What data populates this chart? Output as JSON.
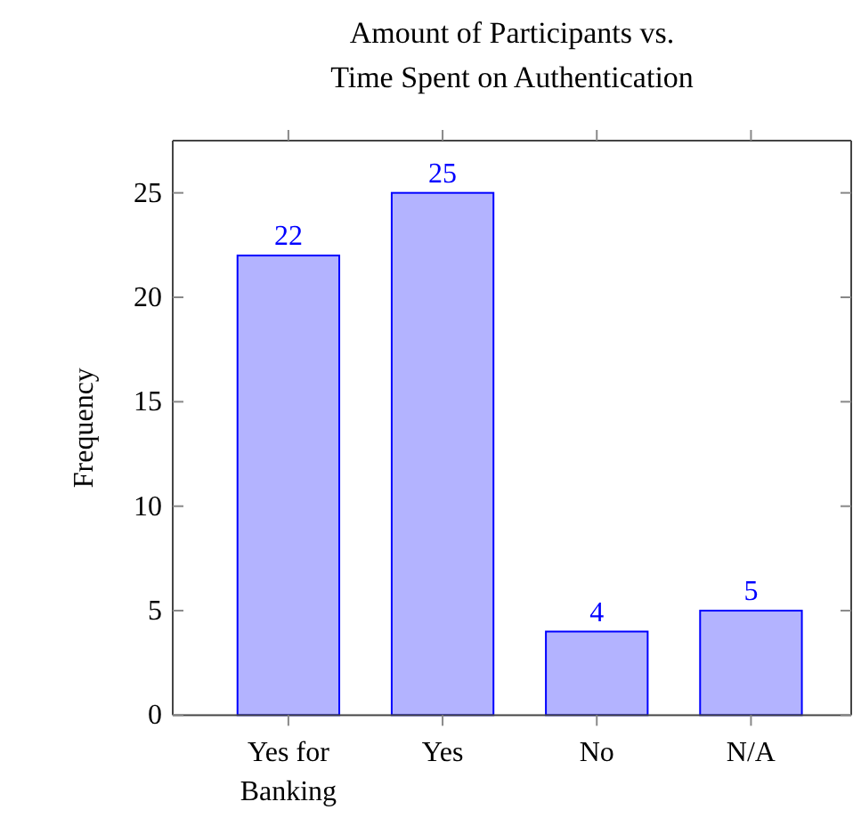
{
  "chart_data": {
    "type": "bar",
    "title": "Amount of Participants vs. Time Spent on Authentication",
    "ylabel": "Frequency",
    "categories": [
      "Yes for Banking",
      "Yes",
      "No",
      "N/A"
    ],
    "values": [
      22,
      25,
      4,
      5
    ],
    "color": "#b3b3ff",
    "ylim": [
      0,
      27.5
    ],
    "yticks": [
      0,
      5,
      10,
      15,
      20,
      25
    ],
    "data_labels": true,
    "grid": false
  }
}
